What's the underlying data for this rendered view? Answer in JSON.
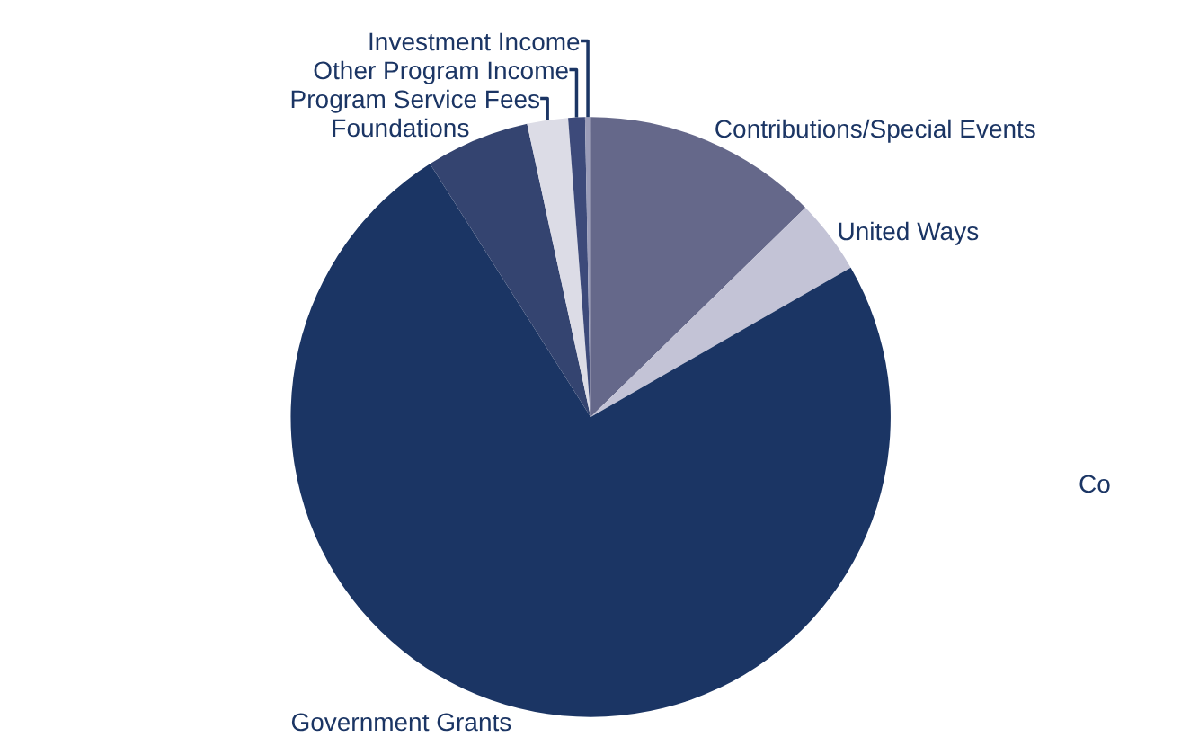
{
  "chart_data": {
    "type": "pie",
    "categories": [
      "Contributions/Special Events",
      "United Ways",
      "Government Grants",
      "Foundations",
      "Program Service Fees",
      "Other Program Income",
      "Investment Income"
    ],
    "values": [
      12.7,
      4.0,
      74.3,
      5.6,
      2.2,
      0.9,
      0.3
    ],
    "colors": [
      "#65688a",
      "#c3c3d6",
      "#1b3564",
      "#344470",
      "#dcdce6",
      "#3d4a7a",
      "#9a9cb8"
    ],
    "annotations": [
      "Co"
    ]
  }
}
